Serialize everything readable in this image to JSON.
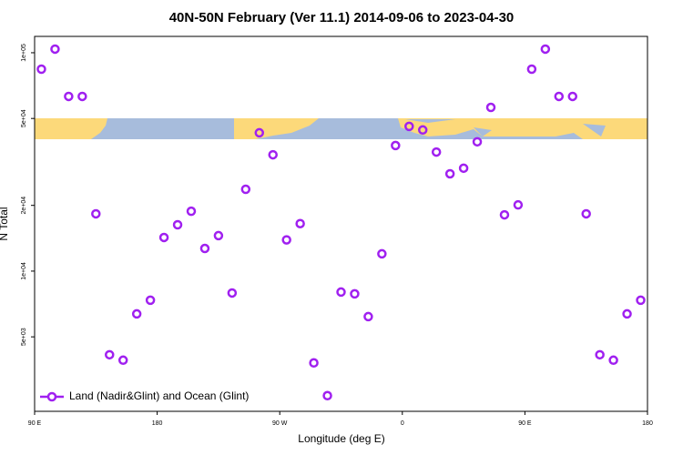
{
  "chart_data": {
    "type": "scatter",
    "title": "40N-50N February (Ver 11.1)   2014-09-06 to 2023-04-30",
    "x_label": "Longitude (deg E)",
    "y_label": "N Total",
    "log_y": true,
    "legend": "bottom-left",
    "xlim": [
      90,
      540
    ],
    "xticks": [
      {
        "value": 90,
        "label": "90 E"
      },
      {
        "value": 180,
        "label": "180"
      },
      {
        "value": 270,
        "label": "90 W"
      },
      {
        "value": 360,
        "label": "0"
      },
      {
        "value": 450,
        "label": "90 E"
      },
      {
        "value": 540,
        "label": "180"
      }
    ],
    "ylim": [
      2280,
      118800
    ],
    "yticks": [
      {
        "value": 5000,
        "label": "5e+03"
      },
      {
        "value": 10000,
        "label": "1e+04"
      },
      {
        "value": 20000,
        "label": "2e+04"
      },
      {
        "value": 50000,
        "label": "5e+04"
      },
      {
        "value": 100000,
        "label": "1e+05"
      }
    ],
    "series": [
      {
        "name": "Land (Nadir&Glint) and Ocean (Glint)",
        "color": "#a020f0",
        "x": [
          95,
          105,
          115,
          125,
          135,
          145,
          155,
          165,
          175,
          185,
          195,
          205,
          215,
          225,
          235,
          245,
          255,
          265,
          275,
          285,
          295,
          305,
          315,
          325,
          335,
          345,
          355,
          365,
          375,
          385,
          395,
          405,
          415,
          425,
          435,
          445,
          455,
          465,
          475,
          485,
          495,
          505,
          515,
          525,
          535
        ],
        "values": [
          84100,
          103900,
          63100,
          63100,
          18300,
          4140,
          3910,
          6370,
          7360,
          14260,
          16300,
          18800,
          12700,
          14540,
          7940,
          23700,
          43000,
          34100,
          13900,
          16500,
          3800,
          2690,
          8020,
          7870,
          6190,
          12000,
          37600,
          46000,
          44300,
          35100,
          27900,
          29600,
          39100,
          56200,
          18100,
          20100,
          84100,
          103900,
          63100,
          63100,
          18300,
          4140,
          3910,
          6370,
          7360
        ]
      }
    ]
  }
}
